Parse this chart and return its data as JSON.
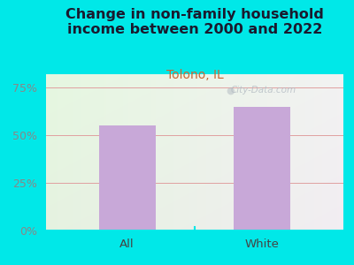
{
  "title": "Change in non-family household\nincome between 2000 and 2022",
  "subtitle": "Tolono, IL",
  "categories": [
    "All",
    "White"
  ],
  "values": [
    55.0,
    65.0
  ],
  "bar_color": "#c8a8d8",
  "title_color": "#1a1a2e",
  "subtitle_color": "#cc6633",
  "tick_label_color": "#888888",
  "background_color": "#00e8e8",
  "grid_color": "#e0a0a0",
  "yticks": [
    0,
    25,
    50,
    75
  ],
  "ylim": [
    0,
    82
  ],
  "xlabel_color": "#444444",
  "watermark": "City-Data.com",
  "title_fontsize": 11.5,
  "subtitle_fontsize": 10
}
